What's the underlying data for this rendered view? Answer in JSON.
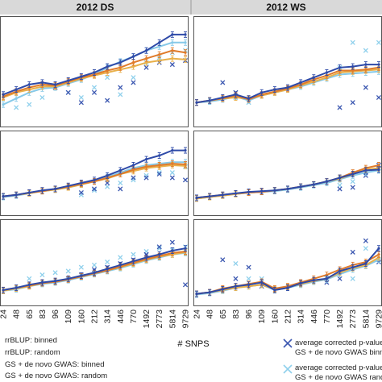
{
  "figure": {
    "column_titles": [
      "2012 DS",
      "2012 WS"
    ],
    "x_axis_label": "# SNPS",
    "x_ticks": [
      "24",
      "48",
      "65",
      "83",
      "96",
      "109",
      "160",
      "212",
      "314",
      "446",
      "770",
      "1492",
      "2773",
      "5814",
      "9729"
    ],
    "legend_left": [
      "rrBLUP: binned",
      "rrBLUP: random",
      "GS + de novo GWAS: binned",
      "GS + de novo GWAS: random"
    ],
    "legend_right": [
      {
        "line1": "average corrected p-value:",
        "line2": "GS + de novo GWAS binned"
      },
      {
        "line1": "average corrected p-value:",
        "line2": "GS + de novo GWAS random"
      }
    ]
  },
  "colors": {
    "rrblup_binned": "#2e4aa8",
    "rrblup_random": "#e07b2a",
    "gs_binned": "#e8b04a",
    "gs_random": "#86c9e8",
    "pval_binned": "#3b57b0",
    "pval_random": "#8fd0ec"
  },
  "chart_data": [
    {
      "panel": "2012 DS top",
      "type": "line",
      "x": [
        "24",
        "48",
        "65",
        "83",
        "96",
        "109",
        "160",
        "212",
        "314",
        "446",
        "770",
        "1492",
        "2773",
        "5814",
        "9729"
      ],
      "series": [
        {
          "name": "rrBLUP: binned",
          "values": [
            0.28,
            0.33,
            0.38,
            0.4,
            0.38,
            0.42,
            0.46,
            0.5,
            0.56,
            0.6,
            0.66,
            0.72,
            0.8,
            0.88,
            0.88
          ]
        },
        {
          "name": "rrBLUP: random",
          "values": [
            0.26,
            0.31,
            0.35,
            0.38,
            0.37,
            0.41,
            0.45,
            0.48,
            0.52,
            0.55,
            0.6,
            0.64,
            0.68,
            0.72,
            0.7
          ]
        },
        {
          "name": "GS + de novo GWAS: binned",
          "values": [
            0.25,
            0.3,
            0.33,
            0.36,
            0.36,
            0.4,
            0.44,
            0.47,
            0.5,
            0.53,
            0.56,
            0.6,
            0.62,
            0.64,
            0.63
          ]
        },
        {
          "name": "GS + de novo GWAS: random",
          "values": [
            0.18,
            0.24,
            0.3,
            0.34,
            0.35,
            0.39,
            0.43,
            0.48,
            0.55,
            0.61,
            0.66,
            0.72,
            0.76,
            0.8,
            0.8
          ]
        }
      ],
      "pvalue_binned": [
        null,
        null,
        null,
        null,
        0.35,
        0.3,
        0.2,
        0.3,
        0.22,
        0.35,
        0.4,
        0.55,
        0.6,
        0.58,
        0.62
      ],
      "pvalue_random": [
        null,
        0.15,
        0.18,
        0.25,
        0.35,
        0.3,
        0.25,
        0.35,
        0.45,
        0.28,
        0.45,
        0.6,
        0.65,
        0.7,
        0.72
      ],
      "ylim": [
        0,
        1
      ]
    },
    {
      "panel": "2012 WS top",
      "type": "line",
      "x": [
        "24",
        "48",
        "65",
        "83",
        "96",
        "109",
        "160",
        "212",
        "314",
        "446",
        "770",
        "1492",
        "2773",
        "5814",
        "9729"
      ],
      "series": [
        {
          "name": "rrBLUP: binned",
          "values": [
            0.2,
            0.22,
            0.25,
            0.28,
            0.24,
            0.3,
            0.33,
            0.35,
            0.4,
            0.45,
            0.5,
            0.55,
            0.56,
            0.58,
            0.58
          ]
        },
        {
          "name": "rrBLUP: random",
          "values": [
            0.2,
            0.22,
            0.24,
            0.27,
            0.23,
            0.28,
            0.31,
            0.34,
            0.38,
            0.43,
            0.47,
            0.52,
            0.52,
            0.53,
            0.55
          ]
        },
        {
          "name": "GS + de novo GWAS: binned",
          "values": [
            0.2,
            0.22,
            0.24,
            0.25,
            0.24,
            0.27,
            0.3,
            0.33,
            0.37,
            0.41,
            0.45,
            0.5,
            0.51,
            0.52,
            0.53
          ]
        },
        {
          "name": "GS + de novo GWAS: random",
          "values": [
            0.2,
            0.21,
            0.23,
            0.26,
            0.22,
            0.27,
            0.3,
            0.33,
            0.36,
            0.4,
            0.44,
            0.48,
            0.49,
            0.5,
            0.51
          ]
        }
      ],
      "pvalue_binned": [
        null,
        null,
        0.4,
        0.3,
        null,
        null,
        null,
        null,
        null,
        null,
        null,
        0.15,
        0.2,
        0.35,
        0.25
      ],
      "pvalue_random": [
        null,
        null,
        null,
        0.25,
        0.2,
        null,
        null,
        null,
        null,
        null,
        null,
        0.55,
        0.8,
        0.72,
        0.8
      ],
      "ylim": [
        0,
        1
      ]
    },
    {
      "panel": "2012 DS middle",
      "type": "line",
      "x": [
        "24",
        "48",
        "65",
        "83",
        "96",
        "109",
        "160",
        "212",
        "314",
        "446",
        "770",
        "1492",
        "2773",
        "5814",
        "9729"
      ],
      "series": [
        {
          "name": "rrBLUP: binned",
          "values": [
            0.2,
            0.22,
            0.25,
            0.28,
            0.3,
            0.34,
            0.38,
            0.42,
            0.48,
            0.55,
            0.62,
            0.7,
            0.75,
            0.82,
            0.82
          ]
        },
        {
          "name": "rrBLUP: random",
          "values": [
            0.2,
            0.22,
            0.25,
            0.27,
            0.3,
            0.33,
            0.37,
            0.4,
            0.45,
            0.5,
            0.56,
            0.6,
            0.62,
            0.64,
            0.63
          ]
        },
        {
          "name": "GS + de novo GWAS: binned",
          "values": [
            0.2,
            0.22,
            0.24,
            0.27,
            0.29,
            0.32,
            0.36,
            0.4,
            0.44,
            0.5,
            0.54,
            0.58,
            0.6,
            0.62,
            0.61
          ]
        },
        {
          "name": "GS + de novo GWAS: random",
          "values": [
            0.19,
            0.21,
            0.24,
            0.27,
            0.29,
            0.32,
            0.36,
            0.4,
            0.46,
            0.52,
            0.58,
            0.62,
            0.64,
            0.66,
            0.66
          ]
        }
      ],
      "pvalue_binned": [
        null,
        null,
        null,
        null,
        null,
        null,
        0.25,
        0.3,
        0.38,
        0.3,
        0.45,
        0.45,
        0.5,
        0.45,
        0.42
      ],
      "pvalue_random": [
        null,
        null,
        null,
        null,
        null,
        null,
        0.22,
        0.28,
        0.33,
        0.38,
        0.42,
        0.48,
        0.52,
        0.52,
        0.6
      ],
      "ylim": [
        0,
        1
      ]
    },
    {
      "panel": "2012 WS middle",
      "type": "line",
      "x": [
        "24",
        "48",
        "65",
        "83",
        "96",
        "109",
        "160",
        "212",
        "314",
        "446",
        "770",
        "1492",
        "2773",
        "5814",
        "9729"
      ],
      "series": [
        {
          "name": "rrBLUP: binned",
          "values": [
            0.18,
            0.2,
            0.22,
            0.24,
            0.26,
            0.27,
            0.28,
            0.3,
            0.33,
            0.36,
            0.4,
            0.45,
            0.5,
            0.55,
            0.56
          ]
        },
        {
          "name": "rrBLUP: random",
          "values": [
            0.18,
            0.2,
            0.22,
            0.24,
            0.25,
            0.26,
            0.28,
            0.3,
            0.33,
            0.36,
            0.4,
            0.45,
            0.52,
            0.58,
            0.62
          ]
        },
        {
          "name": "GS + de novo GWAS: binned",
          "values": [
            0.17,
            0.19,
            0.21,
            0.23,
            0.25,
            0.26,
            0.28,
            0.3,
            0.33,
            0.36,
            0.4,
            0.44,
            0.5,
            0.56,
            0.58
          ]
        },
        {
          "name": "GS + de novo GWAS: random",
          "values": [
            0.17,
            0.19,
            0.21,
            0.23,
            0.25,
            0.26,
            0.27,
            0.29,
            0.32,
            0.35,
            0.38,
            0.43,
            0.48,
            0.52,
            0.55
          ]
        }
      ],
      "pvalue_binned": [
        null,
        null,
        null,
        null,
        null,
        null,
        null,
        null,
        null,
        null,
        null,
        0.3,
        0.32,
        0.48,
        0.62
      ],
      "pvalue_random": [
        null,
        null,
        null,
        null,
        null,
        null,
        null,
        null,
        null,
        null,
        null,
        0.35,
        0.4,
        0.52,
        0.58
      ],
      "ylim": [
        0,
        1
      ]
    },
    {
      "panel": "2012 DS bottom",
      "type": "line",
      "x": [
        "24",
        "48",
        "65",
        "83",
        "96",
        "109",
        "160",
        "212",
        "314",
        "446",
        "770",
        "1492",
        "2773",
        "5814",
        "9729"
      ],
      "series": [
        {
          "name": "rrBLUP: binned",
          "values": [
            0.15,
            0.18,
            0.22,
            0.25,
            0.27,
            0.3,
            0.34,
            0.38,
            0.43,
            0.48,
            0.53,
            0.58,
            0.62,
            0.67,
            0.7
          ]
        },
        {
          "name": "rrBLUP: random",
          "values": [
            0.15,
            0.18,
            0.21,
            0.24,
            0.26,
            0.29,
            0.33,
            0.37,
            0.41,
            0.46,
            0.51,
            0.56,
            0.6,
            0.64,
            0.66
          ]
        },
        {
          "name": "GS + de novo GWAS: binned",
          "values": [
            0.14,
            0.17,
            0.2,
            0.24,
            0.26,
            0.29,
            0.33,
            0.37,
            0.41,
            0.45,
            0.5,
            0.55,
            0.59,
            0.62,
            0.65
          ]
        },
        {
          "name": "GS + de novo GWAS: random",
          "values": [
            0.14,
            0.16,
            0.2,
            0.23,
            0.25,
            0.28,
            0.32,
            0.36,
            0.4,
            0.44,
            0.49,
            0.54,
            0.58,
            0.62,
            0.64
          ]
        }
      ],
      "pvalue_binned": [
        null,
        null,
        null,
        null,
        null,
        0.3,
        0.35,
        0.42,
        0.45,
        0.5,
        0.55,
        0.62,
        0.72,
        0.78,
        0.22
      ],
      "pvalue_random": [
        null,
        null,
        0.3,
        0.35,
        0.38,
        0.4,
        0.45,
        0.48,
        0.52,
        0.58,
        0.62,
        0.66,
        0.7,
        0.68,
        0.72
      ],
      "ylim": [
        0,
        1
      ]
    },
    {
      "panel": "2012 WS bottom",
      "type": "line",
      "x": [
        "24",
        "48",
        "65",
        "83",
        "96",
        "109",
        "160",
        "212",
        "314",
        "446",
        "770",
        "1492",
        "2773",
        "5814",
        "9729"
      ],
      "series": [
        {
          "name": "rrBLUP: binned",
          "values": [
            0.1,
            0.12,
            0.16,
            0.2,
            0.22,
            0.25,
            0.15,
            0.18,
            0.24,
            0.28,
            0.3,
            0.4,
            0.45,
            0.5,
            0.7
          ]
        },
        {
          "name": "rrBLUP: random",
          "values": [
            0.1,
            0.12,
            0.17,
            0.2,
            0.23,
            0.26,
            0.17,
            0.2,
            0.25,
            0.3,
            0.35,
            0.42,
            0.48,
            0.52,
            0.62
          ]
        },
        {
          "name": "GS + de novo GWAS: binned",
          "values": [
            0.1,
            0.12,
            0.15,
            0.18,
            0.2,
            0.22,
            0.16,
            0.19,
            0.23,
            0.27,
            0.3,
            0.38,
            0.44,
            0.48,
            0.58
          ]
        },
        {
          "name": "GS + de novo GWAS: random",
          "values": [
            0.09,
            0.11,
            0.14,
            0.18,
            0.2,
            0.22,
            0.15,
            0.18,
            0.22,
            0.26,
            0.29,
            0.36,
            0.42,
            0.47,
            0.55
          ]
        }
      ],
      "pvalue_binned": [
        null,
        null,
        0.55,
        0.3,
        0.45,
        0.2,
        null,
        null,
        null,
        null,
        0.25,
        0.3,
        0.65,
        0.8,
        0.52
      ],
      "pvalue_random": [
        null,
        null,
        null,
        0.5,
        0.3,
        0.3,
        null,
        null,
        null,
        null,
        0.3,
        0.4,
        0.3,
        0.7,
        0.55
      ],
      "ylim": [
        0,
        1
      ]
    }
  ]
}
